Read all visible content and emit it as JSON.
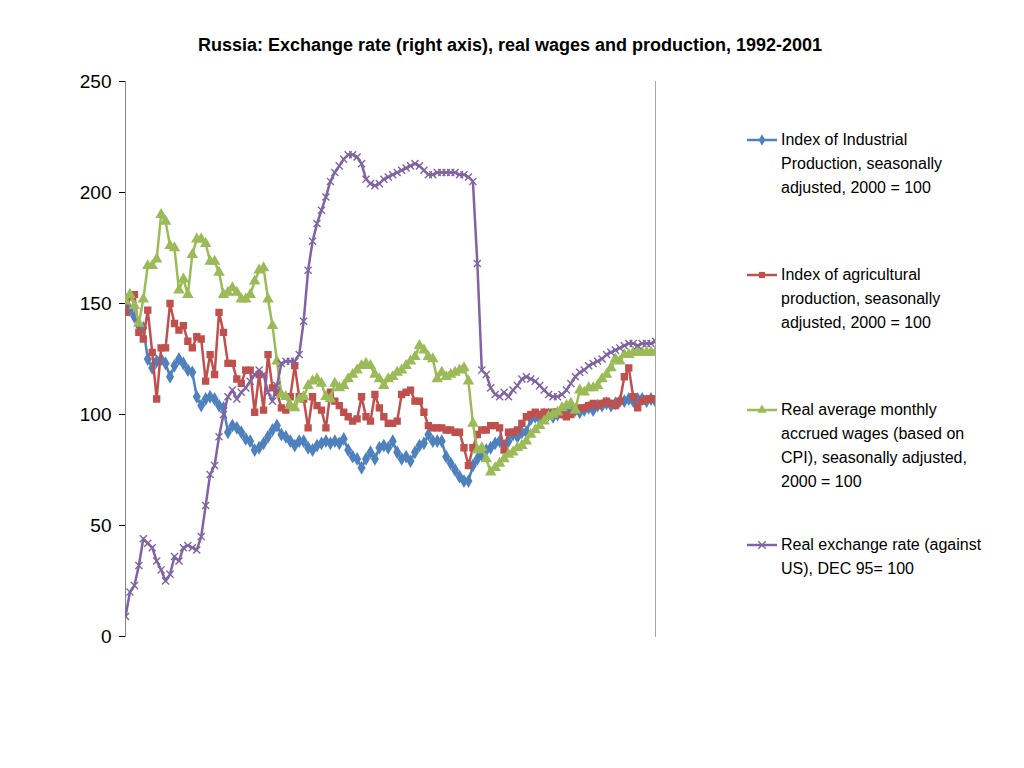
{
  "chart_data": {
    "type": "line",
    "title": "Russia: Exchange rate (right axis), real wages and production, 1992-2001",
    "categories": [
      null,
      null,
      null,
      null,
      null,
      null,
      null,
      null,
      null,
      null,
      null,
      null,
      null,
      null,
      null,
      null,
      null,
      null,
      null,
      null,
      null,
      null,
      null,
      null,
      null,
      null,
      null,
      null,
      null,
      null,
      null,
      null,
      null,
      null,
      null,
      null,
      null,
      null,
      null,
      null,
      null,
      null,
      null,
      null,
      null,
      null,
      null,
      null,
      null,
      null,
      null,
      null,
      null,
      null,
      null,
      null,
      null,
      null,
      null,
      null,
      null,
      null,
      null,
      null,
      null,
      null,
      null,
      null,
      null,
      null,
      null,
      null,
      null,
      null,
      null,
      null,
      null,
      null,
      null,
      null,
      null,
      null,
      null,
      null,
      null,
      null,
      null,
      null,
      null,
      null,
      null,
      null,
      null,
      null,
      null,
      null,
      null,
      null,
      null,
      null,
      null,
      null,
      null,
      null,
      null,
      null,
      null,
      null,
      null,
      null,
      null,
      null,
      null,
      null,
      null,
      null,
      null,
      null,
      null,
      null
    ],
    "series": [
      {
        "name": "Index of Industrial Production, seasonally adjusted, 2000 = 100",
        "color": "#4F81BD",
        "marker": "diamond",
        "values": [
          148,
          147,
          144,
          140,
          139,
          125,
          121,
          124,
          125,
          123,
          117,
          122,
          125,
          123,
          120,
          119,
          108,
          104,
          107,
          108,
          107,
          104,
          103,
          92,
          95,
          94,
          92,
          89,
          88,
          84,
          85,
          87,
          90,
          93,
          95,
          91,
          90,
          88,
          86,
          88,
          88,
          85,
          84,
          86,
          87,
          88,
          87,
          88,
          87,
          89,
          84,
          81,
          80,
          76,
          80,
          83,
          80,
          85,
          86,
          85,
          88,
          83,
          80,
          81,
          79,
          83,
          86,
          87,
          91,
          88,
          88,
          88,
          81,
          78,
          75,
          72,
          70,
          70,
          77,
          80,
          82,
          84,
          85,
          87,
          88,
          86,
          88,
          91,
          90,
          92,
          92,
          98,
          99,
          98,
          100,
          100,
          99,
          100,
          101,
          101,
          102,
          102,
          101,
          102,
          103,
          102,
          104,
          104,
          105,
          104,
          105,
          106,
          106,
          107,
          106,
          107,
          107,
          106,
          107,
          106
        ]
      },
      {
        "name": "Index of agricultural production, seasonally adjusted, 2000 = 100",
        "color": "#C0504D",
        "marker": "square",
        "values": [
          146,
          153,
          154,
          137,
          134,
          147,
          128,
          107,
          130,
          130,
          150,
          141,
          138,
          140,
          133,
          130,
          135,
          134,
          115,
          127,
          118,
          146,
          137,
          123,
          123,
          116,
          114,
          120,
          120,
          101,
          118,
          102,
          127,
          112,
          110,
          103,
          102,
          108,
          122,
          108,
          107,
          94,
          108,
          104,
          102,
          94,
          110,
          106,
          104,
          101,
          99,
          97,
          98,
          108,
          99,
          97,
          109,
          103,
          99,
          96,
          96,
          97,
          109,
          110,
          111,
          106,
          106,
          101,
          95,
          94,
          94,
          94,
          93,
          93,
          92,
          92,
          85,
          77,
          85,
          91,
          93,
          93,
          95,
          95,
          94,
          84,
          92,
          92,
          93,
          96,
          99,
          100,
          101,
          100,
          101,
          100,
          101,
          101,
          100,
          99,
          100,
          102,
          103,
          103,
          104,
          105,
          104,
          105,
          106,
          105,
          104,
          106,
          117,
          121,
          108,
          103,
          106,
          107,
          107,
          107
        ]
      },
      {
        "name": "Real average monthly accrued wages (based on CPI), seasonally adjusted, 2000 = 100",
        "color": "#9BBB59",
        "marker": "triangle",
        "values": [
          151,
          154,
          149,
          141,
          152,
          167,
          167,
          170,
          190,
          187,
          176,
          175,
          156,
          161,
          154,
          172,
          179,
          179,
          177,
          169,
          169,
          164,
          154,
          155,
          157,
          155,
          152,
          152,
          154,
          160,
          165,
          166,
          152,
          140,
          124,
          109,
          108,
          104,
          103,
          107,
          108,
          113,
          115,
          116,
          114,
          108,
          107,
          114,
          112,
          113,
          116,
          118,
          120,
          122,
          123,
          122,
          118,
          116,
          113,
          116,
          117,
          119,
          120,
          122,
          124,
          126,
          131,
          129,
          126,
          125,
          116,
          119,
          117,
          118,
          119,
          120,
          121,
          115,
          96,
          84,
          85,
          80,
          74,
          76,
          78,
          80,
          82,
          83,
          85,
          86,
          88,
          91,
          93,
          95,
          97,
          99,
          100,
          101,
          103,
          104,
          105,
          102,
          111,
          110,
          112,
          112,
          113,
          116,
          118,
          121,
          125,
          124,
          127,
          127,
          128,
          128,
          128,
          128,
          128,
          128
        ]
      },
      {
        "name": "Real exchange rate (against US), DEC 95= 100",
        "color": "#8064A2",
        "marker": "x",
        "values": [
          9,
          20,
          23,
          32,
          44,
          42,
          40,
          34,
          30,
          25,
          28,
          36,
          34,
          40,
          41,
          40,
          39,
          45,
          59,
          73,
          77,
          90,
          100,
          108,
          111,
          107,
          110,
          112,
          115,
          118,
          120,
          118,
          110,
          106,
          113,
          123,
          124,
          124,
          124,
          127,
          142,
          165,
          178,
          186,
          192,
          198,
          205,
          209,
          212,
          215,
          217,
          217,
          216,
          213,
          206,
          204,
          203,
          204,
          206,
          207,
          208,
          209,
          210,
          211,
          212,
          213,
          212,
          210,
          208,
          208,
          209,
          209,
          209,
          209,
          209,
          208,
          208,
          207,
          205,
          168,
          120,
          118,
          112,
          109,
          108,
          110,
          108,
          111,
          113,
          116,
          117,
          116,
          115,
          113,
          111,
          109,
          108,
          108,
          109,
          111,
          114,
          117,
          119,
          120,
          122,
          123,
          124,
          125,
          127,
          128,
          129,
          130,
          131,
          132,
          132,
          131,
          132,
          132,
          132,
          133
        ]
      }
    ],
    "ylim": [
      0,
      250
    ],
    "yticks": [
      0,
      50,
      100,
      150,
      200,
      250
    ],
    "grid": false,
    "legend": "right",
    "tick_labels": "y"
  }
}
